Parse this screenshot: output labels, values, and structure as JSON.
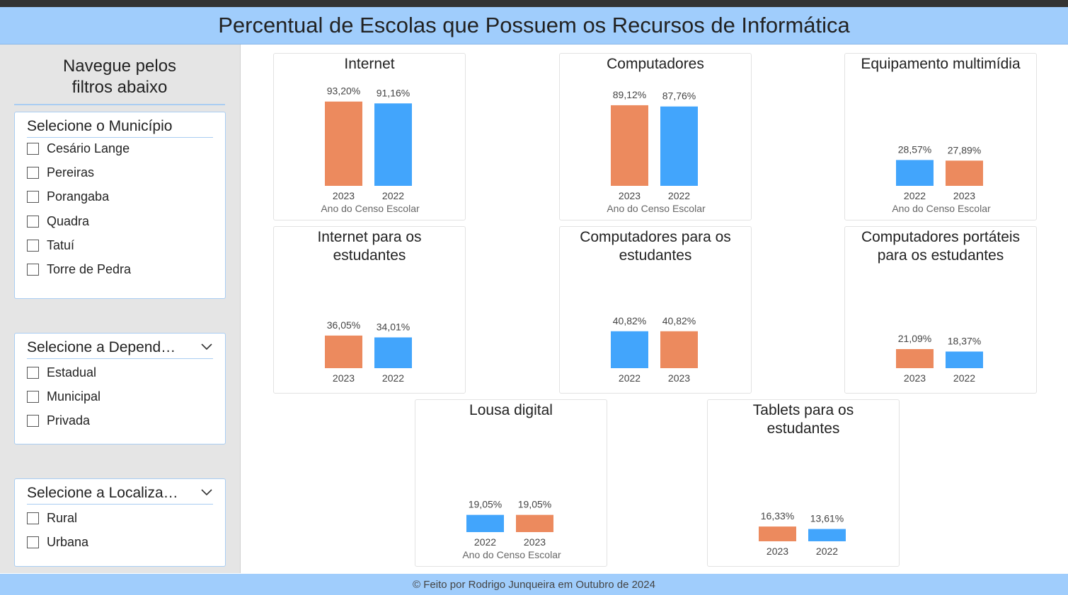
{
  "header": {
    "title": "Percentual de Escolas que Possuem os Recursos de Informática"
  },
  "sidebar": {
    "nav_title_line1": "Navegue pelos",
    "nav_title_line2": "filtros abaixo",
    "slicers": [
      {
        "title": "Selecione o Município",
        "options": [
          "Cesário Lange",
          "Pereiras",
          "Porangaba",
          "Quadra",
          "Tatuí",
          "Torre de Pedra"
        ]
      },
      {
        "title": "Selecione a Depend…",
        "options": [
          "Estadual",
          "Municipal",
          "Privada"
        ]
      },
      {
        "title": "Selecione a Localiza…",
        "options": [
          "Rural",
          "Urbana"
        ]
      }
    ]
  },
  "colors": {
    "orange": "#ec8a5e",
    "blue": "#42a5fc",
    "header_bg": "#a0cdfc"
  },
  "chart_data": [
    {
      "type": "bar",
      "title_lines": [
        "Internet"
      ],
      "categories": [
        "2023",
        "2022"
      ],
      "values": [
        93.2,
        91.16
      ],
      "labels": [
        "93,20%",
        "91,16%"
      ],
      "colors": [
        "orange",
        "blue"
      ],
      "xlabel": "Ano do Censo Escolar"
    },
    {
      "type": "bar",
      "title_lines": [
        "Computadores"
      ],
      "categories": [
        "2023",
        "2022"
      ],
      "values": [
        89.12,
        87.76
      ],
      "labels": [
        "89,12%",
        "87,76%"
      ],
      "colors": [
        "orange",
        "blue"
      ],
      "xlabel": "Ano do Censo Escolar"
    },
    {
      "type": "bar",
      "title_lines": [
        "Equipamento multimídia"
      ],
      "categories": [
        "2022",
        "2023"
      ],
      "values": [
        28.57,
        27.89
      ],
      "labels": [
        "28,57%",
        "27,89%"
      ],
      "colors": [
        "blue",
        "orange"
      ],
      "xlabel": "Ano do Censo Escolar"
    },
    {
      "type": "bar",
      "title_lines": [
        "Internet para os",
        "estudantes"
      ],
      "categories": [
        "2023",
        "2022"
      ],
      "values": [
        36.05,
        34.01
      ],
      "labels": [
        "36,05%",
        "34,01%"
      ],
      "colors": [
        "orange",
        "blue"
      ],
      "xlabel": ""
    },
    {
      "type": "bar",
      "title_lines": [
        "Computadores para os",
        "estudantes"
      ],
      "categories": [
        "2022",
        "2023"
      ],
      "values": [
        40.82,
        40.82
      ],
      "labels": [
        "40,82%",
        "40,82%"
      ],
      "colors": [
        "blue",
        "orange"
      ],
      "xlabel": ""
    },
    {
      "type": "bar",
      "title_lines": [
        "Computadores portáteis",
        "para os estudantes"
      ],
      "categories": [
        "2023",
        "2022"
      ],
      "values": [
        21.09,
        18.37
      ],
      "labels": [
        "21,09%",
        "18,37%"
      ],
      "colors": [
        "orange",
        "blue"
      ],
      "xlabel": ""
    },
    {
      "type": "bar",
      "title_lines": [
        "Lousa digital"
      ],
      "categories": [
        "2022",
        "2023"
      ],
      "values": [
        19.05,
        19.05
      ],
      "labels": [
        "19,05%",
        "19,05%"
      ],
      "colors": [
        "blue",
        "orange"
      ],
      "xlabel": "Ano do Censo Escolar"
    },
    {
      "type": "bar",
      "title_lines": [
        "Tablets para os",
        "estudantes"
      ],
      "categories": [
        "2023",
        "2022"
      ],
      "values": [
        16.33,
        13.61
      ],
      "labels": [
        "16,33%",
        "13,61%"
      ],
      "colors": [
        "orange",
        "blue"
      ],
      "xlabel": ""
    }
  ],
  "footer": {
    "text": "© Feito por Rodrigo Junqueira em Outubro de 2024"
  }
}
